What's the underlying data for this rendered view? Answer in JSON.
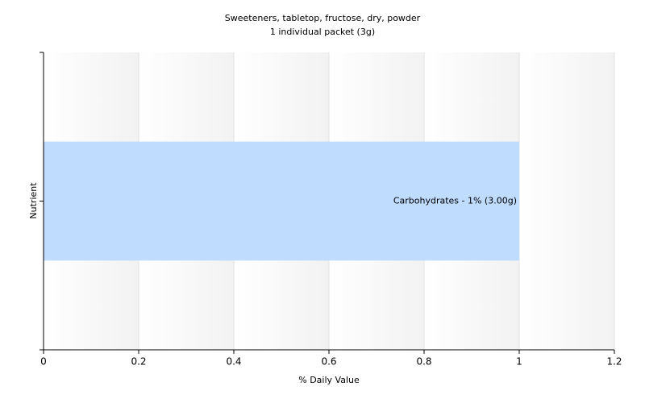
{
  "chart_data": {
    "type": "hbar",
    "title": "Sweeteners, tabletop, fructose, dry, powder",
    "subtitle": "1 individual packet (3g)",
    "x_label": "% Daily Value",
    "y_label": "Nutrient",
    "categories": [
      null
    ],
    "values": [
      1
    ],
    "value_labels": [
      "Carbohydrates - 1% (3.00g)"
    ],
    "color": "#bfdbfe",
    "xlim": [
      0,
      1.2
    ],
    "xticks": [
      0,
      0.2,
      0.4,
      0.6,
      0.8,
      1,
      1.2
    ],
    "grid": true
  }
}
